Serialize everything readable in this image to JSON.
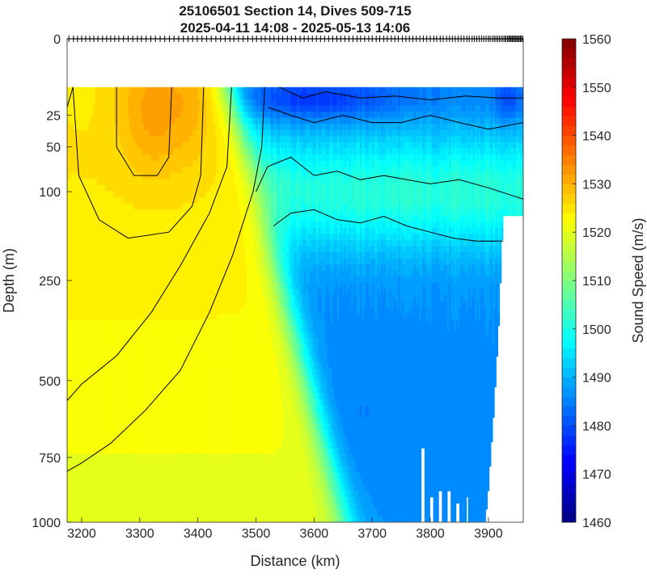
{
  "chart_data": {
    "type": "heatmap",
    "title": [
      "25106501 Section 14, Dives 509-715",
      "2025-04-11 14:08 - 2025-05-13 14:06"
    ],
    "xlabel": "Distance (km)",
    "ylabel": "Depth (m)",
    "colorbar_label": "Sound Speed (m/s)",
    "xlim": [
      3175,
      3960
    ],
    "x_ticks": [
      3200,
      3300,
      3400,
      3500,
      3600,
      3700,
      3800,
      3900
    ],
    "y_scale": "sqrt",
    "ylim": [
      0,
      1000
    ],
    "y_ticks": [
      0,
      25,
      50,
      100,
      250,
      500,
      750,
      1000
    ],
    "colorbar_range": [
      1460,
      1560
    ],
    "colorbar_ticks": [
      1460,
      1470,
      1480,
      1490,
      1500,
      1510,
      1520,
      1530,
      1540,
      1550,
      1560
    ],
    "colormap": "jet",
    "grid": false,
    "data_top_depth": 10,
    "contours": [
      {
        "level": 1530,
        "points": [
          [
            3175,
            20
          ],
          [
            3185,
            10
          ],
          [
            3195,
            80
          ],
          [
            3230,
            140
          ],
          [
            3280,
            170
          ],
          [
            3350,
            160
          ],
          [
            3390,
            120
          ],
          [
            3405,
            80
          ],
          [
            3410,
            10
          ]
        ]
      },
      {
        "level": 1535,
        "points": [
          [
            3260,
            10
          ],
          [
            3260,
            50
          ],
          [
            3290,
            80
          ],
          [
            3330,
            80
          ],
          [
            3350,
            60
          ],
          [
            3355,
            10
          ]
        ]
      },
      {
        "level": 1520,
        "points": [
          [
            3175,
            560
          ],
          [
            3200,
            510
          ],
          [
            3260,
            430
          ],
          [
            3320,
            320
          ],
          [
            3370,
            220
          ],
          [
            3420,
            130
          ],
          [
            3450,
            70
          ],
          [
            3458,
            10
          ]
        ]
      },
      {
        "level": 1510,
        "points": [
          [
            3175,
            800
          ],
          [
            3200,
            770
          ],
          [
            3250,
            700
          ],
          [
            3310,
            590
          ],
          [
            3370,
            470
          ],
          [
            3420,
            320
          ],
          [
            3460,
            200
          ],
          [
            3495,
            100
          ],
          [
            3510,
            50
          ],
          [
            3515,
            10
          ]
        ]
      },
      {
        "level": 1497,
        "points": [
          [
            3500,
            100
          ],
          [
            3520,
            70
          ],
          [
            3560,
            60
          ],
          [
            3600,
            80
          ],
          [
            3640,
            75
          ],
          [
            3680,
            85
          ],
          [
            3720,
            80
          ],
          [
            3760,
            85
          ],
          [
            3800,
            90
          ],
          [
            3850,
            85
          ],
          [
            3900,
            95
          ],
          [
            3960,
            110
          ]
        ]
      },
      {
        "level": 1492,
        "points": [
          [
            3520,
            20
          ],
          [
            3560,
            25
          ],
          [
            3600,
            30
          ],
          [
            3650,
            25
          ],
          [
            3700,
            30
          ],
          [
            3750,
            30
          ],
          [
            3800,
            25
          ],
          [
            3850,
            30
          ],
          [
            3900,
            35
          ],
          [
            3960,
            30
          ]
        ]
      },
      {
        "level": 1487,
        "points": [
          [
            3540,
            10
          ],
          [
            3580,
            15
          ],
          [
            3620,
            12
          ],
          [
            3680,
            15
          ],
          [
            3740,
            14
          ],
          [
            3800,
            16
          ],
          [
            3860,
            14
          ],
          [
            3920,
            15
          ],
          [
            3960,
            15
          ]
        ]
      },
      {
        "level": 1500,
        "points": [
          [
            3530,
            150
          ],
          [
            3560,
            130
          ],
          [
            3600,
            125
          ],
          [
            3640,
            140
          ],
          [
            3680,
            145
          ],
          [
            3720,
            135
          ],
          [
            3760,
            150
          ],
          [
            3800,
            160
          ],
          [
            3840,
            170
          ],
          [
            3880,
            175
          ],
          [
            3925,
            175
          ]
        ]
      }
    ],
    "dive_ticks_km": [
      3178,
      3186,
      3193,
      3200,
      3207,
      3214,
      3221,
      3228,
      3236,
      3243,
      3250,
      3257,
      3264,
      3272,
      3280,
      3288,
      3296,
      3303,
      3311,
      3319,
      3327,
      3335,
      3343,
      3351,
      3359,
      3367,
      3375,
      3383,
      3391,
      3399,
      3407,
      3415,
      3423,
      3431,
      3439,
      3447,
      3455,
      3462,
      3470,
      3478,
      3486,
      3494,
      3501,
      3509,
      3516,
      3524,
      3531,
      3539,
      3546,
      3554,
      3561,
      3568,
      3576,
      3583,
      3590,
      3597,
      3604,
      3611,
      3618,
      3625,
      3632,
      3639,
      3646,
      3653,
      3660,
      3667,
      3674,
      3680,
      3687,
      3694,
      3700,
      3707,
      3713,
      3720,
      3726,
      3733,
      3739,
      3745,
      3752,
      3758,
      3764,
      3770,
      3776,
      3782,
      3788,
      3794,
      3800,
      3806,
      3811,
      3817,
      3822,
      3828,
      3833,
      3838,
      3843,
      3848,
      3853,
      3858,
      3863,
      3867,
      3872,
      3876,
      3880,
      3884,
      3888,
      3892,
      3896,
      3900,
      3903,
      3907,
      3910,
      3913,
      3916,
      3919,
      3922,
      3925,
      3928,
      3930,
      3933,
      3935,
      3937,
      3939,
      3941,
      3943,
      3945,
      3947,
      3949,
      3951,
      3953,
      3955,
      3957,
      3959
    ]
  }
}
